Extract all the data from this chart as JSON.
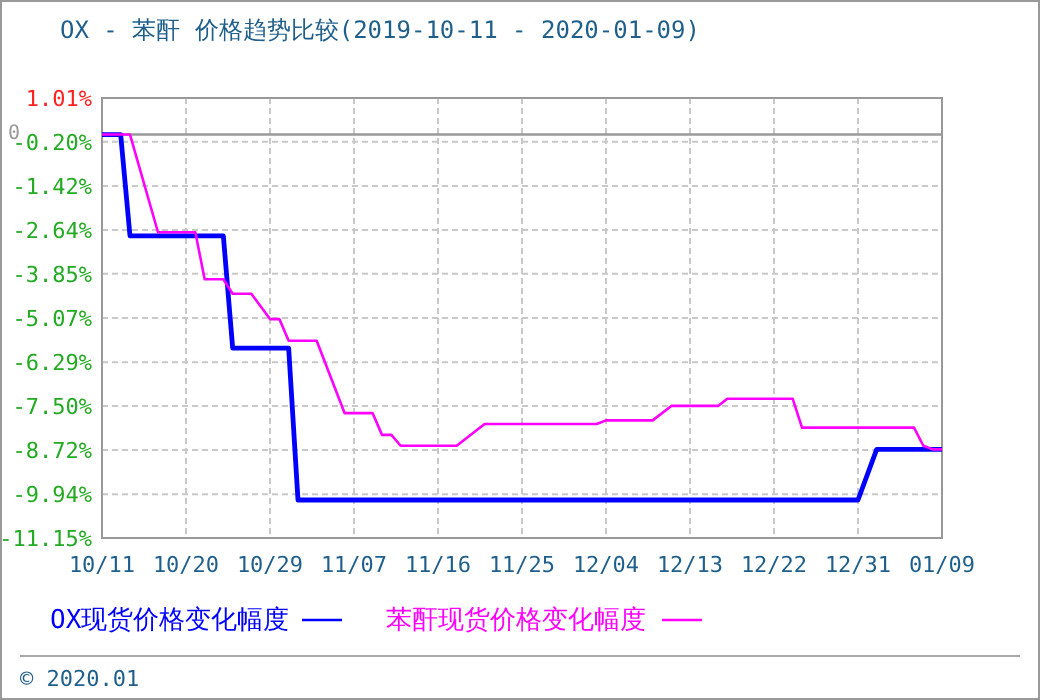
{
  "chart_data": {
    "type": "line",
    "title": "OX - 苯酐 价格趋势比较(2019-10-11 - 2020-01-09)",
    "xlim": [
      "2019-10-11",
      "2020-01-09"
    ],
    "xticks": [
      {
        "value": "2019-10-11",
        "label": "10/11"
      },
      {
        "value": "2019-10-20",
        "label": "10/20"
      },
      {
        "value": "2019-10-29",
        "label": "10/29"
      },
      {
        "value": "2019-11-07",
        "label": "11/07"
      },
      {
        "value": "2019-11-16",
        "label": "11/16"
      },
      {
        "value": "2019-11-25",
        "label": "11/25"
      },
      {
        "value": "2019-12-04",
        "label": "12/04"
      },
      {
        "value": "2019-12-13",
        "label": "12/13"
      },
      {
        "value": "2019-12-22",
        "label": "12/22"
      },
      {
        "value": "2019-12-31",
        "label": "12/31"
      },
      {
        "value": "2020-01-09",
        "label": "01/09"
      }
    ],
    "ylim": [
      -11.15,
      1.01
    ],
    "yticks": [
      {
        "value": 1.01,
        "label": "1.01%"
      },
      {
        "value": -0.2,
        "label": "-0.20%"
      },
      {
        "value": -1.42,
        "label": "-1.42%"
      },
      {
        "value": -2.64,
        "label": "-2.64%"
      },
      {
        "value": -3.85,
        "label": "-3.85%"
      },
      {
        "value": -5.07,
        "label": "-5.07%"
      },
      {
        "value": -6.29,
        "label": "-6.29%"
      },
      {
        "value": -7.5,
        "label": "-7.50%"
      },
      {
        "value": -8.72,
        "label": "-8.72%"
      },
      {
        "value": -9.94,
        "label": "-9.94%"
      },
      {
        "value": -11.15,
        "label": "-11.15%"
      }
    ],
    "grid": true,
    "legend": "bottom",
    "ref_lines": [
      {
        "axis": "y",
        "value": 0,
        "label": "0",
        "color": "#999999"
      }
    ],
    "series": [
      {
        "name": "OX现货价格变化幅度",
        "color": "#0000ff",
        "x": [
          "2019-10-11",
          "2019-10-13",
          "2019-10-14",
          "2019-10-24",
          "2019-10-25",
          "2019-10-31",
          "2019-11-01",
          "2019-12-31",
          "2020-01-02",
          "2020-01-09"
        ],
        "values": [
          0,
          0,
          -2.8,
          -2.8,
          -5.9,
          -5.9,
          -10.1,
          -10.1,
          -8.7,
          -8.7
        ]
      },
      {
        "name": "苯酐现货价格变化幅度",
        "color": "#ff00ff",
        "x": [
          "2019-10-11",
          "2019-10-14",
          "2019-10-17",
          "2019-10-21",
          "2019-10-22",
          "2019-10-24",
          "2019-10-25",
          "2019-10-27",
          "2019-10-29",
          "2019-10-30",
          "2019-10-31",
          "2019-11-03",
          "2019-11-06",
          "2019-11-09",
          "2019-11-10",
          "2019-11-11",
          "2019-11-12",
          "2019-11-18",
          "2019-11-21",
          "2019-12-03",
          "2019-12-04",
          "2019-12-09",
          "2019-12-11",
          "2019-12-16",
          "2019-12-17",
          "2019-12-24",
          "2019-12-25",
          "2020-01-06",
          "2020-01-07",
          "2020-01-08",
          "2020-01-09"
        ],
        "values": [
          0,
          0,
          -2.7,
          -2.7,
          -4.0,
          -4.0,
          -4.4,
          -4.4,
          -5.1,
          -5.1,
          -5.7,
          -5.7,
          -7.7,
          -7.7,
          -8.3,
          -8.3,
          -8.6,
          -8.6,
          -8.0,
          -8.0,
          -7.9,
          -7.9,
          -7.5,
          -7.5,
          -7.3,
          -7.3,
          -8.1,
          -8.1,
          -8.6,
          -8.7,
          -8.7
        ]
      }
    ],
    "annotations": [
      "© 2020.01"
    ]
  }
}
